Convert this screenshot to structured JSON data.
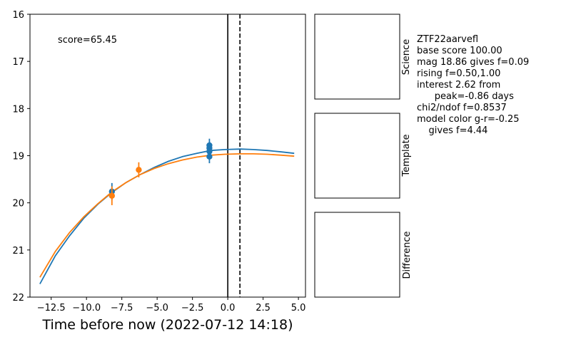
{
  "chart_data": {
    "type": "line",
    "xlabel": "Time before now (2022-07-12 14:18)",
    "ylabel": "",
    "xlim": [
      -14.0,
      5.5
    ],
    "ylim": [
      22,
      16
    ],
    "y_inverted": true,
    "x_ticks": [
      -12.5,
      -10.0,
      -7.5,
      -5.0,
      -2.5,
      0.0,
      2.5,
      5.0
    ],
    "x_tick_labels": [
      "−12.5",
      "−10.0",
      "−7.5",
      "−5.0",
      "−2.5",
      "0.0",
      "2.5",
      "5.0"
    ],
    "y_ticks": [
      16,
      17,
      18,
      19,
      20,
      21,
      22
    ],
    "y_tick_labels": [
      "16",
      "17",
      "18",
      "19",
      "20",
      "21",
      "22"
    ],
    "grid": false,
    "annotation": "score=65.45",
    "vlines": [
      {
        "x": 0.0,
        "style": "solid",
        "color": "#000000"
      },
      {
        "x": 0.86,
        "style": "dashed",
        "color": "#000000"
      }
    ],
    "series": [
      {
        "kind": "model",
        "color": "#1f77b4",
        "x": [
          -13.3,
          -12.2,
          -11.2,
          -10.2,
          -9.2,
          -8.2,
          -7.2,
          -6.2,
          -5.2,
          -4.2,
          -3.2,
          -2.2,
          -1.2,
          -0.2,
          0.9,
          1.8,
          2.8,
          3.8,
          4.7
        ],
        "y": [
          21.72,
          21.12,
          20.7,
          20.33,
          20.03,
          19.78,
          19.57,
          19.4,
          19.25,
          19.12,
          19.02,
          18.95,
          18.89,
          18.87,
          18.86,
          18.87,
          18.89,
          18.92,
          18.95
        ]
      },
      {
        "kind": "model",
        "color": "#ff7f0e",
        "x": [
          -13.3,
          -12.2,
          -11.2,
          -10.2,
          -9.2,
          -8.2,
          -7.2,
          -6.2,
          -5.2,
          -4.2,
          -3.2,
          -2.2,
          -1.2,
          -0.2,
          0.9,
          1.8,
          2.8,
          3.8,
          4.7
        ],
        "y": [
          21.58,
          21.03,
          20.63,
          20.3,
          20.02,
          19.77,
          19.57,
          19.4,
          19.27,
          19.17,
          19.09,
          19.03,
          18.99,
          18.97,
          18.96,
          18.96,
          18.97,
          18.99,
          19.01
        ]
      },
      {
        "kind": "observations",
        "color": "#1f77b4",
        "x": [
          -8.2,
          -1.3,
          -1.3,
          -1.3,
          -1.3
        ],
        "y": [
          19.76,
          18.78,
          18.84,
          18.91,
          19.02
        ],
        "err": [
          0.18,
          0.14,
          0.14,
          0.14,
          0.14
        ]
      },
      {
        "kind": "observations",
        "color": "#ff7f0e",
        "x": [
          -8.2,
          -6.3
        ],
        "y": [
          19.85,
          19.3
        ],
        "err": [
          0.2,
          0.16
        ]
      }
    ]
  },
  "panels": [
    {
      "title": "Science"
    },
    {
      "title": "Template"
    },
    {
      "title": "Difference"
    }
  ],
  "info_lines": [
    "ZTF22aarvefl",
    "base score 100.00",
    "mag 18.86 gives f=0.09",
    "rising f=0.50,1.00",
    "interest 2.62 from",
    "      peak=-0.86 days",
    "chi2/ndof f=0.8537",
    "model color g-r=-0.25",
    "    gives f=4.44"
  ]
}
